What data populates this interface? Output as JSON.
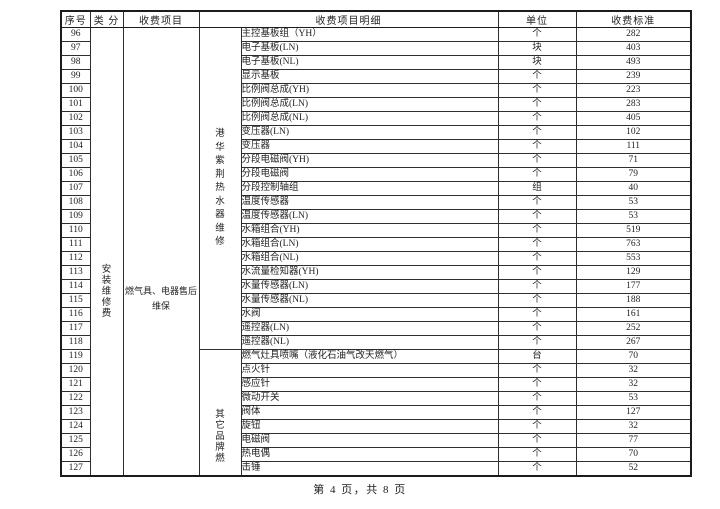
{
  "table": {
    "headers": {
      "index": "序号",
      "category": "类 分",
      "item": "收费项目",
      "detail": "收费项目明细",
      "unit": "单位",
      "standard": "收费标准"
    },
    "category_label": "安装维修费",
    "item_label": "燃气具、电器售后维保",
    "groups": [
      {
        "label": "港华紫荆热水器维修",
        "rows": [
          {
            "no": "96",
            "detail": "主控基板组（YH）",
            "unit": "个",
            "fee": "282"
          },
          {
            "no": "97",
            "detail": "电子基板(LN)",
            "unit": "块",
            "fee": "403"
          },
          {
            "no": "98",
            "detail": "电子基板(NL)",
            "unit": "块",
            "fee": "493"
          },
          {
            "no": "99",
            "detail": "显示基板",
            "unit": "个",
            "fee": "239"
          },
          {
            "no": "100",
            "detail": "比例阀总成(YH)",
            "unit": "个",
            "fee": "223"
          },
          {
            "no": "101",
            "detail": "比例阀总成(LN)",
            "unit": "个",
            "fee": "283"
          },
          {
            "no": "102",
            "detail": "比例阀总成(NL)",
            "unit": "个",
            "fee": "405"
          },
          {
            "no": "103",
            "detail": "变压器(LN)",
            "unit": "个",
            "fee": "102"
          },
          {
            "no": "104",
            "detail": "变压器",
            "unit": "个",
            "fee": "111"
          },
          {
            "no": "105",
            "detail": "分段电磁阀(YH)",
            "unit": "个",
            "fee": "71"
          },
          {
            "no": "106",
            "detail": "分段电磁阀",
            "unit": "个",
            "fee": "79"
          },
          {
            "no": "107",
            "detail": "分段控制轴组",
            "unit": "组",
            "fee": "40"
          },
          {
            "no": "108",
            "detail": "温度传感器",
            "unit": "个",
            "fee": "53"
          },
          {
            "no": "109",
            "detail": "温度传感器(LN)",
            "unit": "个",
            "fee": "53"
          },
          {
            "no": "110",
            "detail": "水箱组合(YH)",
            "unit": "个",
            "fee": "519"
          },
          {
            "no": "111",
            "detail": "水箱组合(LN)",
            "unit": "个",
            "fee": "763"
          },
          {
            "no": "112",
            "detail": "水箱组合(NL)",
            "unit": "个",
            "fee": "553"
          },
          {
            "no": "113",
            "detail": "水流量检知器(YH)",
            "unit": "个",
            "fee": "129"
          },
          {
            "no": "114",
            "detail": "水量传感器(LN)",
            "unit": "个",
            "fee": "177"
          },
          {
            "no": "115",
            "detail": "水量传感器(NL)",
            "unit": "个",
            "fee": "188"
          },
          {
            "no": "116",
            "detail": "水阀",
            "unit": "个",
            "fee": "161"
          },
          {
            "no": "117",
            "detail": "遥控器(LN)",
            "unit": "个",
            "fee": "252"
          },
          {
            "no": "118",
            "detail": "遥控器(NL)",
            "unit": "个",
            "fee": "267"
          }
        ]
      },
      {
        "label": "其它品牌燃",
        "rows": [
          {
            "no": "119",
            "detail": "燃气灶具喷嘴（液化石油气改天燃气）",
            "unit": "台",
            "fee": "70"
          },
          {
            "no": "120",
            "detail": "点火针",
            "unit": "个",
            "fee": "32"
          },
          {
            "no": "121",
            "detail": "感应针",
            "unit": "个",
            "fee": "32"
          },
          {
            "no": "122",
            "detail": "微动开关",
            "unit": "个",
            "fee": "53"
          },
          {
            "no": "123",
            "detail": "阀体",
            "unit": "个",
            "fee": "127"
          },
          {
            "no": "124",
            "detail": "旋钮",
            "unit": "个",
            "fee": "32"
          },
          {
            "no": "125",
            "detail": "电磁阀",
            "unit": "个",
            "fee": "77"
          },
          {
            "no": "126",
            "detail": "热电偶",
            "unit": "个",
            "fee": "70"
          },
          {
            "no": "127",
            "detail": "击锤",
            "unit": "个",
            "fee": "52"
          }
        ]
      }
    ]
  },
  "footer": {
    "text": "第 4 页，共 8 页"
  }
}
